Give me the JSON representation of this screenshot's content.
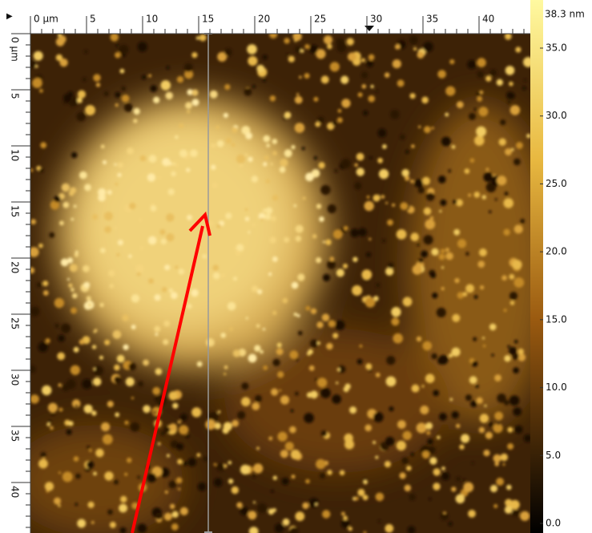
{
  "x_ruler": {
    "labels": [
      "0 µm",
      "5",
      "10",
      "15",
      "20",
      "25",
      "30",
      "35",
      "40"
    ]
  },
  "y_ruler": {
    "labels": [
      "0 µm",
      "5",
      "10",
      "15",
      "20",
      "25",
      "30",
      "35",
      "40"
    ]
  },
  "color_bar": {
    "max_label": "38.3 nm",
    "labels": [
      "35.0",
      "30.0",
      "25.0",
      "20.0",
      "15.0",
      "10.0",
      "5.0",
      "0.0"
    ]
  }
}
